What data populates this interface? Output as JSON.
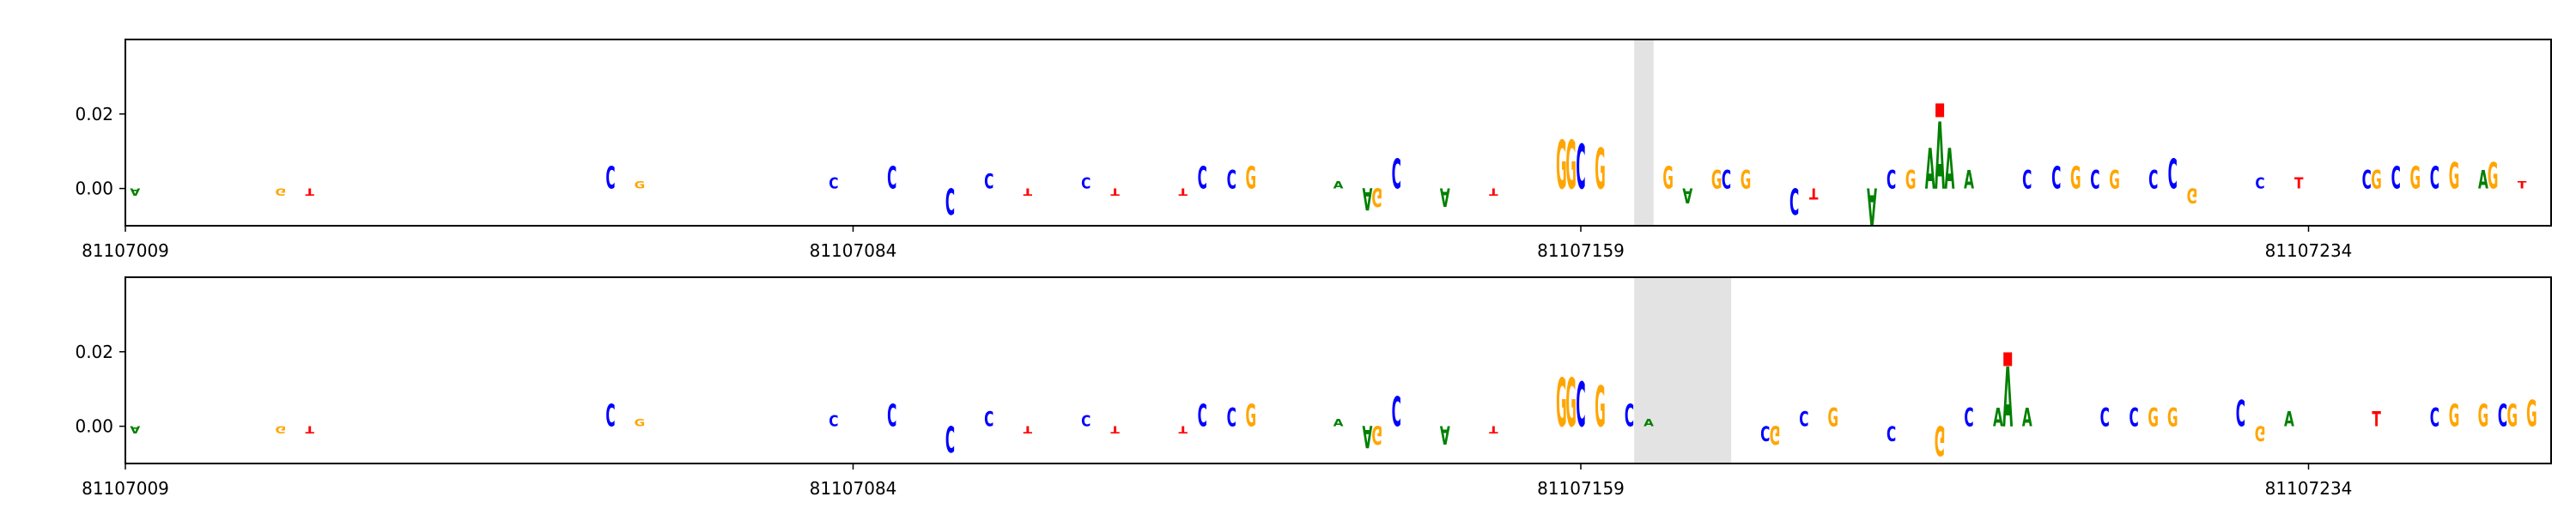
{
  "chart_data": [
    {
      "type": "logo",
      "base_colors": {
        "A": "#008000",
        "C": "#0000ff",
        "G": "#ffa500",
        "T": "#ff0000"
      },
      "x": [
        81107010,
        81107025,
        81107028,
        81107059,
        81107062,
        81107082,
        81107088,
        81107094,
        81107098,
        81107102,
        81107108,
        81107111,
        81107118,
        81107120,
        81107123,
        81107125,
        81107134,
        81107137,
        81107138,
        81107140,
        81107145,
        81107150,
        81107157,
        81107158,
        81107159,
        81107161,
        81107168,
        81107170,
        81107173,
        81107174,
        81107176,
        81107181,
        81107183,
        81107189,
        81107191,
        81107193,
        81107195,
        81107196,
        81107197,
        81107199,
        81107205,
        81107208,
        81107210,
        81107212,
        81107214,
        81107218,
        81107220,
        81107222,
        81107229,
        81107233,
        81107240,
        81107241,
        81107243,
        81107245,
        81107247,
        81107249,
        81107252,
        81107253,
        81107256
      ],
      "bases": [
        "A",
        "G",
        "T",
        "C",
        "G",
        "C",
        "C",
        "C",
        "C",
        "T",
        "C",
        "T",
        "T",
        "C",
        "C",
        "G",
        "A",
        "A",
        "G",
        "C",
        "A",
        "T",
        "G",
        "G",
        "C",
        "G",
        "G",
        "A",
        "G",
        "C",
        "G",
        "C",
        "T",
        "A",
        "C",
        "G",
        "A",
        "A",
        "A",
        "A",
        "C",
        "C",
        "G",
        "C",
        "G",
        "C",
        "C",
        "G",
        "C",
        "T",
        "C",
        "G",
        "C",
        "G",
        "C",
        "G",
        "A",
        "G",
        "T"
      ],
      "values": [
        -0.002,
        -0.002,
        -0.002,
        0.006,
        0.002,
        0.003,
        0.006,
        -0.007,
        0.004,
        -0.002,
        0.003,
        -0.002,
        -0.002,
        0.006,
        0.005,
        0.006,
        0.002,
        -0.006,
        -0.005,
        0.008,
        -0.005,
        -0.002,
        0.013,
        0.013,
        0.012,
        0.011,
        0.006,
        -0.004,
        0.005,
        0.005,
        0.005,
        -0.007,
        -0.003,
        -0.01,
        0.005,
        0.005,
        0.011,
        0.018,
        0.011,
        0.005,
        0.005,
        0.006,
        0.006,
        0.005,
        0.005,
        0.005,
        0.008,
        -0.004,
        0.003,
        0.003,
        0.005,
        0.005,
        0.006,
        0.006,
        0.006,
        0.007,
        0.005,
        0.007,
        0.002
      ],
      "xlim": [
        81107009,
        81107259
      ],
      "ylim": [
        -0.01,
        0.04
      ],
      "xticks": [
        81107009,
        81107084,
        81107159,
        81107234
      ],
      "yticks": [
        {
          "value": 0,
          "label": "0.00"
        },
        {
          "value": 0.02,
          "label": "0.02"
        }
      ],
      "highlight": [
        81107165,
        81107166
      ],
      "marker": {
        "x": 81107196,
        "y": 0.021,
        "color": "#ff0000"
      }
    },
    {
      "type": "logo",
      "base_colors": {
        "A": "#008000",
        "C": "#0000ff",
        "G": "#ffa500",
        "T": "#ff0000"
      },
      "x": [
        81107010,
        81107025,
        81107028,
        81107059,
        81107062,
        81107082,
        81107088,
        81107094,
        81107098,
        81107102,
        81107108,
        81107111,
        81107118,
        81107120,
        81107123,
        81107125,
        81107134,
        81107137,
        81107138,
        81107140,
        81107145,
        81107150,
        81107157,
        81107158,
        81107159,
        81107161,
        81107164,
        81107166,
        81107178,
        81107179,
        81107182,
        81107185,
        81107191,
        81107196,
        81107199,
        81107202,
        81107203,
        81107205,
        81107213,
        81107216,
        81107218,
        81107220,
        81107227,
        81107229,
        81107232,
        81107241,
        81107247,
        81107249,
        81107252,
        81107254,
        81107255,
        81107257
      ],
      "bases": [
        "A",
        "G",
        "T",
        "C",
        "G",
        "C",
        "C",
        "C",
        "C",
        "T",
        "C",
        "T",
        "T",
        "C",
        "C",
        "G",
        "A",
        "A",
        "G",
        "C",
        "A",
        "T",
        "G",
        "G",
        "C",
        "G",
        "C",
        "A",
        "C",
        "G",
        "C",
        "G",
        "C",
        "G",
        "C",
        "A",
        "A",
        "A",
        "C",
        "C",
        "G",
        "G",
        "C",
        "G",
        "A",
        "T",
        "C",
        "G",
        "G",
        "C",
        "G",
        "G"
      ],
      "values": [
        -0.002,
        -0.002,
        -0.002,
        0.006,
        0.002,
        0.003,
        0.006,
        -0.007,
        0.004,
        -0.002,
        0.003,
        -0.002,
        -0.002,
        0.006,
        0.005,
        0.006,
        0.002,
        -0.006,
        -0.005,
        0.008,
        -0.005,
        -0.002,
        0.013,
        0.013,
        0.012,
        0.011,
        0.006,
        0.002,
        -0.004,
        -0.005,
        0.004,
        0.005,
        -0.004,
        -0.008,
        0.005,
        0.005,
        0.016,
        0.005,
        0.005,
        0.005,
        0.005,
        0.005,
        0.007,
        -0.004,
        0.004,
        0.004,
        0.005,
        0.006,
        0.006,
        0.006,
        0.006,
        0.007
      ],
      "xlim": [
        81107009,
        81107259
      ],
      "ylim": [
        -0.01,
        0.04
      ],
      "xticks": [
        81107009,
        81107084,
        81107159,
        81107234
      ],
      "yticks": [
        {
          "value": 0,
          "label": "0.00"
        },
        {
          "value": 0.02,
          "label": "0.02"
        }
      ],
      "highlight": [
        81107165,
        81107174
      ],
      "marker": {
        "x": 81107203,
        "y": 0.018,
        "color": "#ff0000"
      }
    }
  ]
}
